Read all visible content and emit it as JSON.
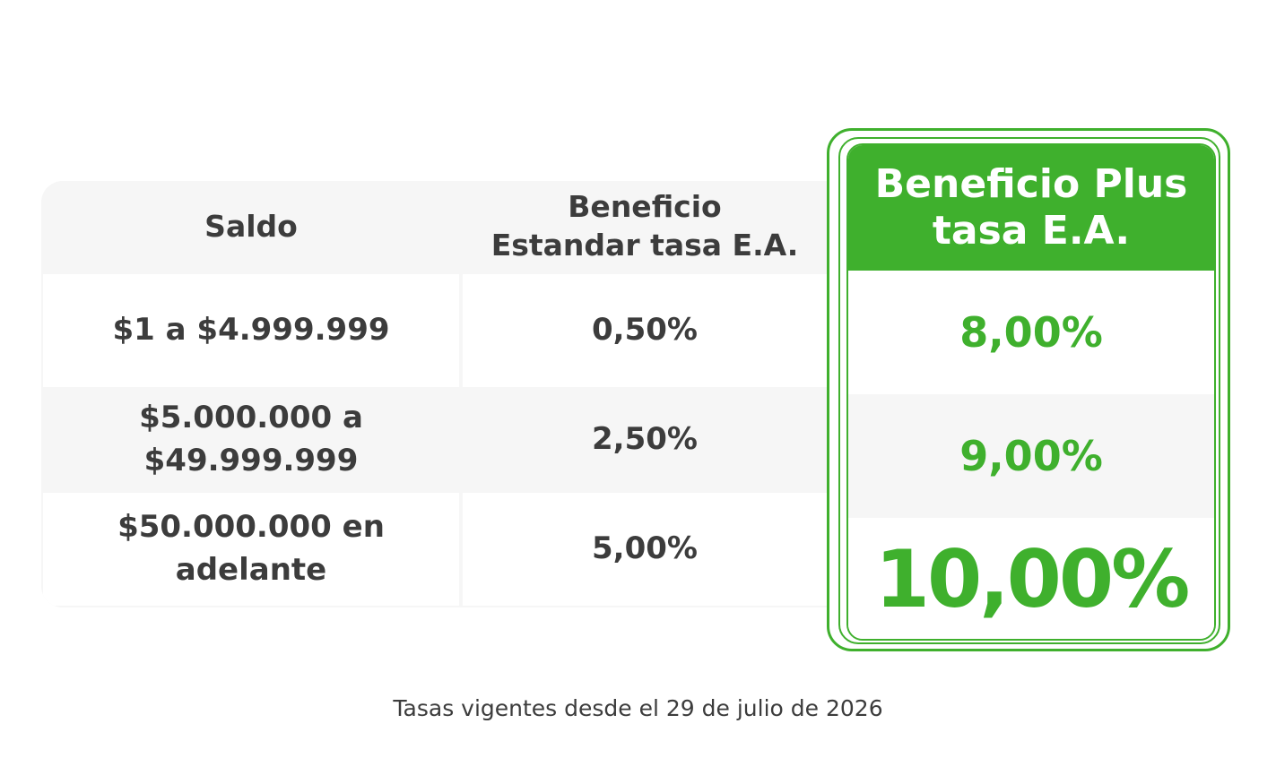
{
  "standard_table": {
    "headers": {
      "saldo": "Saldo",
      "standard_line1": "Beneficio",
      "standard_line2": "Estandar tasa E.A."
    },
    "rows": [
      {
        "saldo_line1": "$1 a $4.999.999",
        "saldo_line2": "",
        "standard_rate": "0,50%"
      },
      {
        "saldo_line1": "$5.000.000 a",
        "saldo_line2": "$49.999.999",
        "standard_rate": "2,50%"
      },
      {
        "saldo_line1": "$50.000.000 en",
        "saldo_line2": "adelante",
        "standard_rate": "5,00%"
      }
    ]
  },
  "plus_card": {
    "header_line1": "Beneficio Plus",
    "header_line2": "tasa E.A.",
    "rates": [
      "8,00%",
      "9,00%",
      "10,00%"
    ]
  },
  "footnote": "Tasas vigentes desde el 29 de julio de 2026",
  "colors": {
    "accent_green": "#3fb02d",
    "text_dark": "#3c3c3c",
    "row_grey": "#f6f6f6"
  }
}
